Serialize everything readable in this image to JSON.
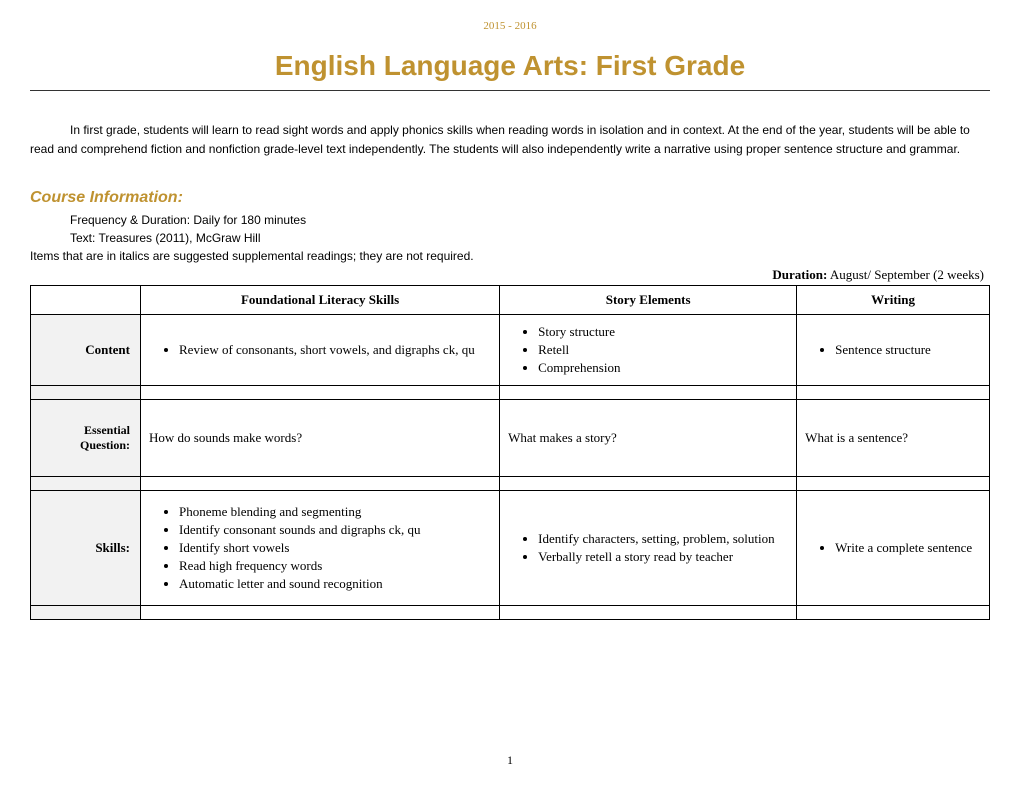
{
  "colors": {
    "accent": "#bf9230",
    "text": "#000000",
    "background": "#ffffff",
    "table_border": "#000000",
    "row_label_bg": "#f2f2f2"
  },
  "typography": {
    "title_fontsize": 28,
    "section_heading_fontsize": 16,
    "body_fontsize": 12,
    "table_fontsize": 13
  },
  "header": {
    "year": "2015 - 2016"
  },
  "title": "English Language Arts:  First Grade",
  "intro": "In first grade, students will learn to read sight words and apply phonics skills when reading words in isolation and in context.  At the end of the year, students will be able to read and comprehend fiction and nonfiction grade-level text independently.  The students will also independently write a narrative using proper sentence structure and grammar.",
  "course_info": {
    "heading": "Course Information:",
    "frequency": "Frequency & Duration:  Daily for 180 minutes",
    "text": "Text:  Treasures (2011), McGraw Hill",
    "supplemental": "Items that are in italics are suggested supplemental readings; they are not required."
  },
  "duration": {
    "label": "Duration:",
    "value": "  August/ September (2 weeks)"
  },
  "table": {
    "headers": [
      "Foundational Literacy Skills",
      "Story Elements",
      "Writing"
    ],
    "row_labels": {
      "content": "Content",
      "essential_question": "Essential Question:",
      "skills": "Skills:"
    },
    "content": {
      "col1": [
        "Review of consonants, short vowels, and digraphs ck, qu"
      ],
      "col2": [
        "Story structure",
        "Retell",
        "Comprehension"
      ],
      "col3": [
        "Sentence structure"
      ]
    },
    "essential_question": {
      "col1": "How do sounds make words?",
      "col2": "What makes a story?",
      "col3": "What is a sentence?"
    },
    "skills": {
      "col1": [
        "Phoneme blending and segmenting",
        "Identify consonant sounds and digraphs ck, qu",
        "Identify short vowels",
        "Read high frequency words",
        "Automatic letter and sound recognition"
      ],
      "col2": [
        "Identify characters, setting, problem, solution",
        "Verbally retell a story read by teacher"
      ],
      "col3": [
        "Write a complete sentence"
      ]
    }
  },
  "page_number": "1"
}
